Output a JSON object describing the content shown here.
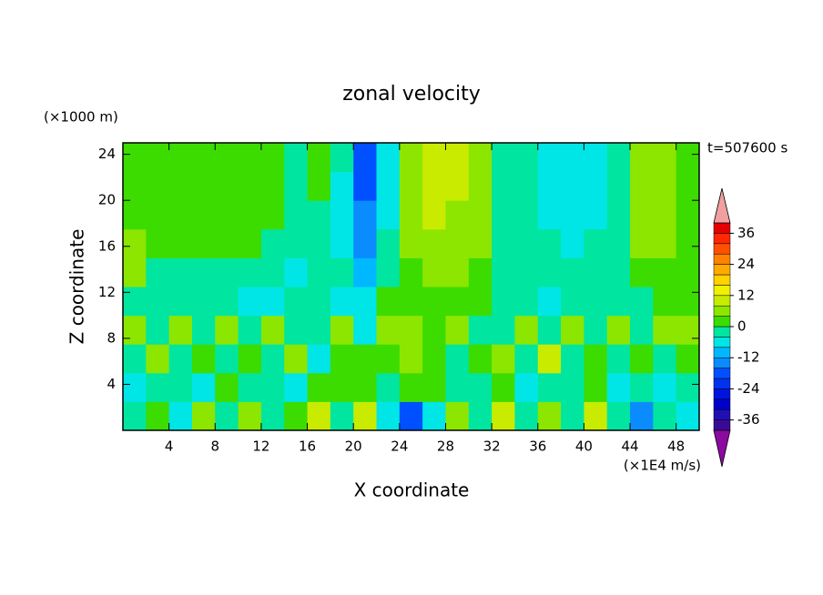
{
  "chart_data": {
    "type": "contourf",
    "title": "zonal velocity",
    "y_unit": "(×1000 m)",
    "time_label": "t=507600 s",
    "ylabel": "Z coordinate",
    "xlabel": "X coordinate",
    "value_unit": "(×1E4 m/s)",
    "xlim": [
      0,
      50
    ],
    "ylim": [
      0,
      25
    ],
    "xticks": [
      4,
      8,
      12,
      16,
      20,
      24,
      28,
      32,
      36,
      40,
      44,
      48
    ],
    "yticks": [
      4,
      8,
      12,
      16,
      20,
      24
    ],
    "x": [
      1,
      3,
      5,
      7,
      9,
      11,
      13,
      15,
      17,
      19,
      21,
      23,
      25,
      27,
      29,
      31,
      33,
      35,
      37,
      39,
      41,
      43,
      45,
      47,
      49
    ],
    "y": [
      1.25,
      3.75,
      6.25,
      8.75,
      11.25,
      13.75,
      16.25,
      18.75,
      21.25,
      23.75
    ],
    "z": [
      [
        -4,
        2,
        -6,
        4,
        -2,
        6,
        -4,
        2,
        8,
        -2,
        10,
        -6,
        -20,
        -6,
        4,
        -4,
        8,
        -2,
        6,
        -4,
        8,
        -2,
        -16,
        -4,
        -6
      ],
      [
        -6,
        -2,
        -4,
        -6,
        2,
        -4,
        -2,
        -6,
        2,
        3,
        2,
        -2,
        3,
        2,
        -4,
        -2,
        2,
        -6,
        -2,
        -4,
        2,
        -6,
        -2,
        -6,
        -4
      ],
      [
        -4,
        6,
        -2,
        2,
        -4,
        2,
        -2,
        5,
        -6,
        2,
        1,
        3,
        5,
        3,
        -2,
        2,
        6,
        -2,
        8,
        -4,
        2,
        -4,
        3,
        -4,
        2
      ],
      [
        5,
        -2,
        6,
        -2,
        5,
        -4,
        6,
        -4,
        -2,
        5,
        -6,
        6,
        4,
        2,
        5,
        -2,
        -4,
        6,
        -2,
        5,
        -4,
        6,
        -2,
        5,
        6
      ],
      [
        -2,
        -4,
        -2,
        -4,
        -4,
        -6,
        -6,
        -4,
        -4,
        -6,
        -8,
        2,
        2,
        3,
        2,
        1,
        -4,
        -4,
        -6,
        -4,
        -4,
        -2,
        -2,
        0,
        1
      ],
      [
        5,
        -2,
        -4,
        -2,
        -2,
        -4,
        -4,
        -6,
        -4,
        -4,
        -12,
        -2,
        3,
        4,
        5,
        3,
        -2,
        -3,
        -4,
        -4,
        -3,
        -2,
        2,
        3,
        2
      ],
      [
        4,
        2,
        1,
        2,
        2,
        1,
        -2,
        -4,
        -2,
        -6,
        -14,
        -4,
        5,
        6,
        6,
        4,
        -2,
        -3,
        -4,
        -5,
        -4,
        -2,
        4,
        5,
        3
      ],
      [
        3,
        2,
        2,
        2,
        2,
        2,
        0,
        -2,
        -1,
        -6,
        -16,
        -6,
        6,
        8,
        7,
        5,
        -2,
        -3,
        -5,
        -6,
        -5,
        -2,
        5,
        6,
        2
      ],
      [
        2,
        2,
        2,
        3,
        3,
        2,
        1,
        -2,
        0,
        -6,
        -18,
        -6,
        5,
        9,
        8,
        6,
        -3,
        -2,
        -6,
        -7,
        -5,
        -3,
        6,
        6,
        2
      ],
      [
        2,
        2,
        2,
        3,
        3,
        2,
        2,
        -2,
        1,
        -4,
        -18,
        -8,
        5,
        10,
        9,
        6,
        -4,
        -2,
        -6,
        -6,
        -6,
        -4,
        6,
        7,
        2
      ]
    ],
    "levels": [
      -40,
      -36,
      -32,
      -28,
      -24,
      -20,
      -16,
      -12,
      -8,
      -4,
      0,
      4,
      8,
      12,
      16,
      20,
      24,
      28,
      32,
      36,
      40
    ],
    "colors": [
      "#3a0a96",
      "#2010b4",
      "#0000c8",
      "#0014e0",
      "#0032f0",
      "#0050ff",
      "#0a8cff",
      "#00b8ff",
      "#00e6e6",
      "#00e6a0",
      "#3cdc00",
      "#8ce600",
      "#c8eb00",
      "#f0f000",
      "#ffd200",
      "#ffaa00",
      "#ff8200",
      "#ff5000",
      "#ff2800",
      "#e60000"
    ],
    "under_color": "#8c0aa0",
    "over_color": "#f0a0a0",
    "cbar_ticks": [
      -36,
      -24,
      -12,
      0,
      12,
      24,
      36
    ]
  }
}
